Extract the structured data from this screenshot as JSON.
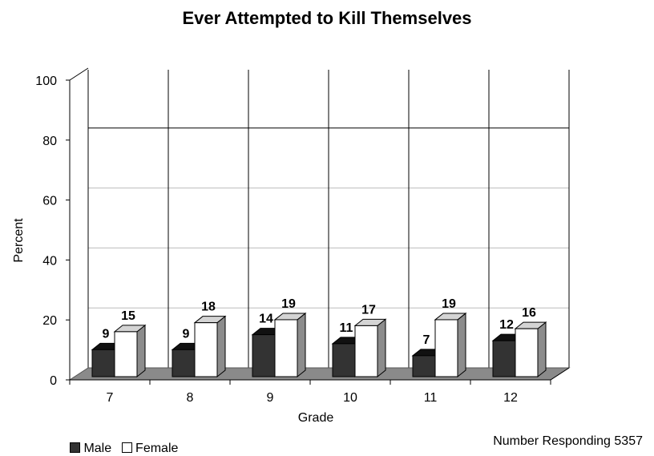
{
  "chart_data": {
    "type": "bar",
    "title": "Ever Attempted to Kill Themselves",
    "xlabel": "Grade",
    "ylabel": "Percent",
    "categories": [
      "7",
      "8",
      "9",
      "10",
      "11",
      "12"
    ],
    "series": [
      {
        "name": "Male",
        "values": [
          9,
          9,
          14,
          11,
          7,
          12
        ],
        "color": "#333333"
      },
      {
        "name": "Female",
        "values": [
          15,
          18,
          19,
          17,
          19,
          16
        ],
        "color": "#ffffff"
      }
    ],
    "ylim": [
      0,
      100
    ],
    "yticks": [
      "0",
      "20",
      "40",
      "60",
      "80",
      "100"
    ],
    "grid": true,
    "legend": "bottom-left",
    "annotation": "Number Responding 5357"
  }
}
